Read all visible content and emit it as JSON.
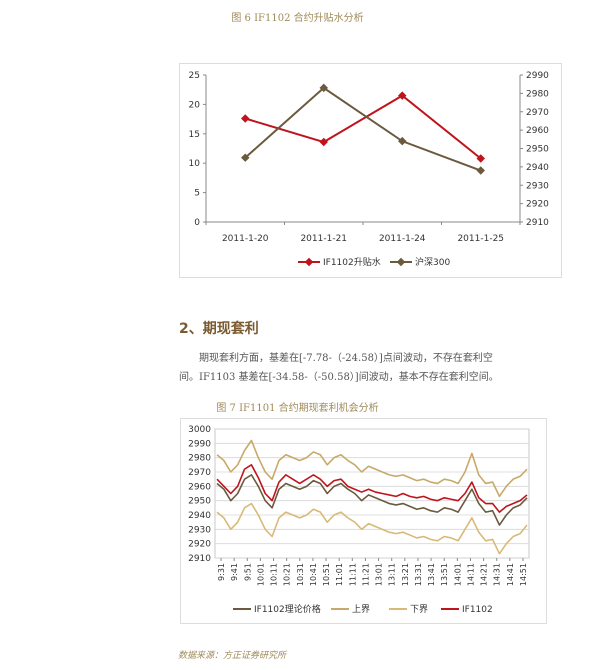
{
  "figure6": {
    "caption": "图 6  IF1102 合约升贴水分析",
    "chart_data": {
      "type": "line",
      "categories": [
        "2011-1-20",
        "2011-1-21",
        "2011-1-24",
        "2011-1-25"
      ],
      "y_left_lim": [
        0,
        25
      ],
      "y_left_ticks": [
        "0",
        "5",
        "10",
        "15",
        "20",
        "25"
      ],
      "y_right_lim": [
        2910,
        2990
      ],
      "y_right_ticks": [
        "2910",
        "2920",
        "2930",
        "2940",
        "2950",
        "2960",
        "2970",
        "2980",
        "2990"
      ],
      "series": [
        {
          "name": "IF1102升贴水",
          "axis": "left",
          "color": "#c0141c",
          "values": [
            17.6,
            13.6,
            21.5,
            10.8
          ]
        },
        {
          "name": "沪深300",
          "axis": "right",
          "color": "#6b5a3e",
          "values": [
            2945,
            2983,
            2954,
            2938
          ]
        }
      ],
      "legend_position": "bottom"
    }
  },
  "section": {
    "title": "2、期现套利",
    "para_line1": "期现套利方面，基差在[-7.78-（-24.58）]点间波动，不存在套利空",
    "para_line2": "间。IF1103 基差在[-34.58-（-50.58）]间波动，基本不存在套利空间。"
  },
  "figure7": {
    "caption": "图 7  IF1101 合约期现套利机会分析",
    "chart_data": {
      "type": "line",
      "x_ticks": [
        "9:31",
        "9:41",
        "9:51",
        "10:01",
        "10:11",
        "10:21",
        "10:31",
        "10:41",
        "10:51",
        "11:01",
        "11:11",
        "11:21",
        "13:01",
        "13:11",
        "13:21",
        "13:31",
        "13:41",
        "13:51",
        "14:01",
        "14:11",
        "14:21",
        "14:31",
        "14:41",
        "14:51"
      ],
      "ylim": [
        2910,
        3000
      ],
      "y_ticks": [
        "2910",
        "2920",
        "2930",
        "2940",
        "2950",
        "2960",
        "2970",
        "2980",
        "2990",
        "3000"
      ],
      "grid": true,
      "legend_position": "bottom",
      "series": [
        {
          "name": "IF1102理论价格",
          "color": "#6b5a3e",
          "values": [
            2962,
            2958,
            2950,
            2955,
            2965,
            2968,
            2960,
            2950,
            2945,
            2958,
            2962,
            2960,
            2958,
            2960,
            2964,
            2962,
            2955,
            2960,
            2962,
            2958,
            2955,
            2950,
            2954,
            2952,
            2950,
            2948,
            2947,
            2948,
            2946,
            2944,
            2945,
            2943,
            2942,
            2945,
            2944,
            2942,
            2950,
            2958,
            2948,
            2942,
            2943,
            2933,
            2940,
            2945,
            2947,
            2952
          ]
        },
        {
          "name": "上界",
          "color": "#c8a96a",
          "values": [
            2982,
            2978,
            2970,
            2975,
            2985,
            2992,
            2980,
            2970,
            2965,
            2978,
            2982,
            2980,
            2978,
            2980,
            2984,
            2982,
            2975,
            2980,
            2982,
            2978,
            2975,
            2970,
            2974,
            2972,
            2970,
            2968,
            2967,
            2968,
            2966,
            2964,
            2965,
            2963,
            2962,
            2965,
            2964,
            2962,
            2970,
            2983,
            2968,
            2962,
            2963,
            2953,
            2960,
            2965,
            2967,
            2972
          ]
        },
        {
          "name": "下界",
          "color": "#d9b978",
          "values": [
            2942,
            2938,
            2930,
            2935,
            2945,
            2948,
            2940,
            2930,
            2925,
            2938,
            2942,
            2940,
            2938,
            2940,
            2944,
            2942,
            2935,
            2940,
            2942,
            2938,
            2935,
            2930,
            2934,
            2932,
            2930,
            2928,
            2927,
            2928,
            2926,
            2924,
            2925,
            2923,
            2922,
            2925,
            2924,
            2922,
            2930,
            2938,
            2928,
            2922,
            2923,
            2913,
            2920,
            2925,
            2927,
            2933
          ]
        },
        {
          "name": "IF1102",
          "color": "#c0141c",
          "values": [
            2965,
            2960,
            2955,
            2960,
            2972,
            2975,
            2966,
            2955,
            2950,
            2963,
            2968,
            2965,
            2962,
            2965,
            2968,
            2965,
            2960,
            2964,
            2965,
            2960,
            2958,
            2956,
            2958,
            2956,
            2955,
            2954,
            2953,
            2955,
            2953,
            2952,
            2953,
            2951,
            2950,
            2952,
            2951,
            2950,
            2955,
            2963,
            2952,
            2948,
            2948,
            2942,
            2946,
            2948,
            2950,
            2954
          ]
        }
      ]
    }
  },
  "source": "数据来源：方正证券研究所"
}
